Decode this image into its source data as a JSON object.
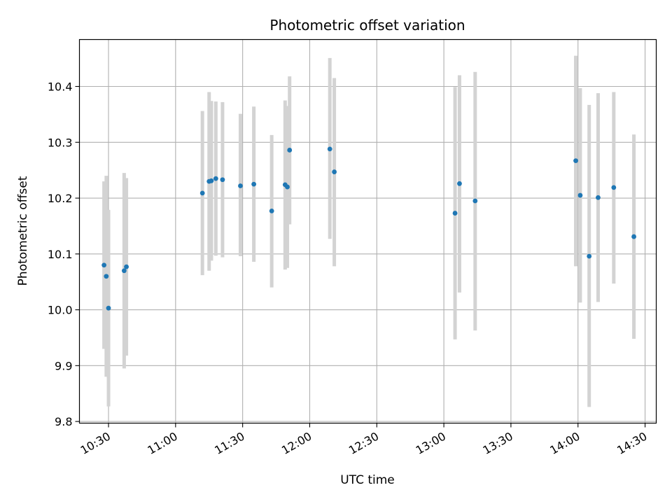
{
  "chart_data": {
    "type": "scatter",
    "title": "Photometric offset variation",
    "xlabel": "UTC time",
    "ylabel": "Photometric offset",
    "xlim": [
      "10:17",
      "14:35"
    ],
    "ylim": [
      9.797,
      10.484
    ],
    "x_ticks": [
      "10:30",
      "11:00",
      "11:30",
      "12:00",
      "12:30",
      "13:00",
      "13:30",
      "14:00",
      "14:30"
    ],
    "y_ticks": [
      9.8,
      9.9,
      10.0,
      10.1,
      10.2,
      10.3,
      10.4
    ],
    "y_tick_labels": [
      "9.8",
      "9.9",
      "10.0",
      "10.1",
      "10.2",
      "10.3",
      "10.4"
    ],
    "grid": true,
    "colors": {
      "point": "#1f77b4",
      "errorbar": "#d3d3d3",
      "grid": "#b0b0b0"
    },
    "series": [
      {
        "points": [
          {
            "x": "10:28",
            "y": 10.08,
            "ylo": 9.93,
            "yhi": 10.23
          },
          {
            "x": "10:29",
            "y": 10.06,
            "ylo": 9.88,
            "yhi": 10.24
          },
          {
            "x": "10:30",
            "y": 10.003,
            "ylo": 9.827,
            "yhi": 10.179
          },
          {
            "x": "10:37",
            "y": 10.07,
            "ylo": 9.895,
            "yhi": 10.245
          },
          {
            "x": "10:38",
            "y": 10.077,
            "ylo": 9.918,
            "yhi": 10.236
          },
          {
            "x": "11:12",
            "y": 10.209,
            "ylo": 10.062,
            "yhi": 10.356
          },
          {
            "x": "11:15",
            "y": 10.23,
            "ylo": 10.07,
            "yhi": 10.39
          },
          {
            "x": "11:16",
            "y": 10.231,
            "ylo": 10.088,
            "yhi": 10.374
          },
          {
            "x": "11:18",
            "y": 10.235,
            "ylo": 10.097,
            "yhi": 10.373
          },
          {
            "x": "11:21",
            "y": 10.233,
            "ylo": 10.094,
            "yhi": 10.372
          },
          {
            "x": "11:29",
            "y": 10.222,
            "ylo": 10.096,
            "yhi": 10.351
          },
          {
            "x": "11:35",
            "y": 10.225,
            "ylo": 10.086,
            "yhi": 10.364
          },
          {
            "x": "11:43",
            "y": 10.177,
            "ylo": 10.04,
            "yhi": 10.313
          },
          {
            "x": "11:49",
            "y": 10.224,
            "ylo": 10.072,
            "yhi": 10.375
          },
          {
            "x": "11:50",
            "y": 10.22,
            "ylo": 10.075,
            "yhi": 10.365
          },
          {
            "x": "11:51",
            "y": 10.286,
            "ylo": 10.153,
            "yhi": 10.418
          },
          {
            "x": "12:09",
            "y": 10.288,
            "ylo": 10.127,
            "yhi": 10.451
          },
          {
            "x": "12:11",
            "y": 10.247,
            "ylo": 10.078,
            "yhi": 10.415
          },
          {
            "x": "13:05",
            "y": 10.173,
            "ylo": 9.947,
            "yhi": 10.399
          },
          {
            "x": "13:07",
            "y": 10.226,
            "ylo": 10.031,
            "yhi": 10.42
          },
          {
            "x": "13:14",
            "y": 10.195,
            "ylo": 9.963,
            "yhi": 10.426
          },
          {
            "x": "13:59",
            "y": 10.267,
            "ylo": 10.078,
            "yhi": 10.455
          },
          {
            "x": "14:01",
            "y": 10.205,
            "ylo": 10.013,
            "yhi": 10.397
          },
          {
            "x": "14:05",
            "y": 10.096,
            "ylo": 9.826,
            "yhi": 10.367
          },
          {
            "x": "14:09",
            "y": 10.201,
            "ylo": 10.014,
            "yhi": 10.388
          },
          {
            "x": "14:16",
            "y": 10.219,
            "ylo": 10.047,
            "yhi": 10.39
          },
          {
            "x": "14:25",
            "y": 10.131,
            "ylo": 9.948,
            "yhi": 10.314
          }
        ]
      }
    ]
  }
}
